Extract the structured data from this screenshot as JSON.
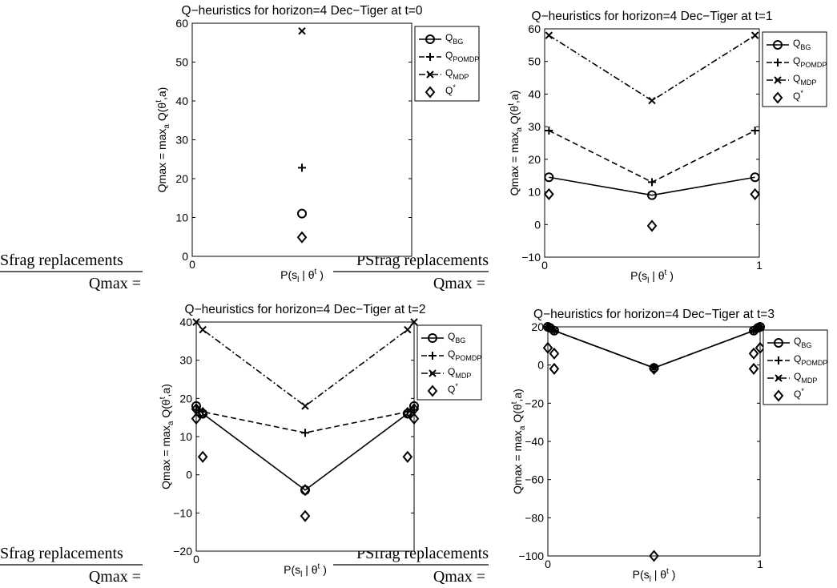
{
  "chart_data": [
    {
      "type": "line",
      "title": "Q−heuristics for horizon=4 Dec−Tiger at t=0",
      "xlabel": "P(s",
      "xlabel_sub": "l",
      "xlabel_rest": " | θ",
      "xlabel_sup": "t",
      "xlabel_end": " )",
      "ylabel": "Qmax = max",
      "ylabel_sub": "a",
      "ylabel_rest": " Q(θ",
      "ylabel_sup": "t",
      "ylabel_end": ",a)",
      "xlim": [
        0,
        1
      ],
      "ylim": [
        0,
        60
      ],
      "xticks": [
        0
      ],
      "yticks": [
        0,
        10,
        20,
        30,
        40,
        50,
        60
      ],
      "legend_position": "top-right",
      "series": [
        {
          "name": "BG",
          "marker": "circle",
          "line": "solid",
          "x": [
            0.5
          ],
          "y": [
            11
          ]
        },
        {
          "name": "POMDP",
          "marker": "plus",
          "line": "dashed",
          "x": [
            0.5
          ],
          "y": [
            22.8
          ]
        },
        {
          "name": "MDP",
          "marker": "x",
          "line": "dashdot",
          "x": [
            0.5
          ],
          "y": [
            58
          ]
        },
        {
          "name": "*",
          "marker": "diamond",
          "line": "none",
          "x": [
            0.5
          ],
          "y": [
            4.9
          ]
        }
      ]
    },
    {
      "type": "line",
      "title": "Q−heuristics for horizon=4 Dec−Tiger at t=1",
      "xlabel": "P(s",
      "xlabel_sub": "l",
      "xlabel_rest": " | θ",
      "xlabel_sup": "t",
      "xlabel_end": " )",
      "ylabel": "Qmax = max",
      "ylabel_sub": "a",
      "ylabel_rest": " Q(θ",
      "ylabel_sup": "t",
      "ylabel_end": ",a)",
      "xlim": [
        0,
        1
      ],
      "ylim": [
        -10,
        60
      ],
      "xticks": [
        0,
        1
      ],
      "yticks": [
        -10,
        0,
        10,
        20,
        30,
        40,
        50,
        60
      ],
      "legend_position": "top-right",
      "series": [
        {
          "name": "BG",
          "marker": "circle",
          "line": "solid",
          "x": [
            0.02,
            0.5,
            0.98
          ],
          "y": [
            14.5,
            9,
            14.5
          ]
        },
        {
          "name": "POMDP",
          "marker": "plus",
          "line": "dashed",
          "x": [
            0.02,
            0.5,
            0.98
          ],
          "y": [
            28.8,
            13,
            28.8
          ]
        },
        {
          "name": "MDP",
          "marker": "x",
          "line": "dashdot",
          "x": [
            0.02,
            0.5,
            0.98
          ],
          "y": [
            58,
            38,
            58
          ]
        },
        {
          "name": "*",
          "marker": "diamond",
          "line": "none",
          "x": [
            0.02,
            0.5,
            0.98
          ],
          "y": [
            9.3,
            -0.4,
            9.3
          ]
        }
      ]
    },
    {
      "type": "line",
      "title": "Q−heuristics for horizon=4 Dec−Tiger at t=2",
      "xlabel": "P(s",
      "xlabel_sub": "l",
      "xlabel_rest": " | θ",
      "xlabel_sup": "t",
      "xlabel_end": " )",
      "ylabel": "Qmax = max",
      "ylabel_sub": "a",
      "ylabel_rest": " Q(θ",
      "ylabel_sup": "t",
      "ylabel_end": ",a)",
      "xlim": [
        0,
        1
      ],
      "ylim": [
        -20,
        40
      ],
      "xticks": [
        0
      ],
      "yticks": [
        -20,
        -10,
        0,
        10,
        20,
        30,
        40
      ],
      "legend_position": "top-right",
      "series": [
        {
          "name": "BG",
          "marker": "circle",
          "line": "solid",
          "x": [
            0.0,
            0.03,
            0.5,
            0.97,
            1.0
          ],
          "y": [
            18,
            16,
            -4,
            16,
            18
          ]
        },
        {
          "name": "POMDP",
          "marker": "plus",
          "line": "dashed",
          "x": [
            0.0,
            0.03,
            0.5,
            0.97,
            1.0
          ],
          "y": [
            17,
            16.5,
            11,
            16.5,
            17
          ]
        },
        {
          "name": "MDP",
          "marker": "x",
          "line": "dashdot",
          "x": [
            0.0,
            0.03,
            0.5,
            0.97,
            1.0
          ],
          "y": [
            40,
            38,
            18,
            38,
            40
          ]
        },
        {
          "name": "*",
          "marker": "diamond",
          "line": "none",
          "x": [
            0.0,
            0.03,
            0.5,
            0.97,
            1.0,
            0.0,
            0.03,
            0.5,
            0.97,
            1.0
          ],
          "y": [
            14.7,
            4.7,
            -4,
            4.7,
            14.7,
            17.2,
            16.2,
            -10.8,
            16.2,
            17.2
          ]
        }
      ]
    },
    {
      "type": "line",
      "title": "Q−heuristics for horizon=4 Dec−Tiger at t=3",
      "xlabel": "P(s",
      "xlabel_sub": "l",
      "xlabel_rest": " | θ",
      "xlabel_sup": "t",
      "xlabel_end": " )",
      "ylabel": "Qmax = max",
      "ylabel_sub": "a",
      "ylabel_rest": " Q(θ",
      "ylabel_sup": "t",
      "ylabel_end": ",a)",
      "xlim": [
        0,
        1
      ],
      "ylim": [
        -100,
        20
      ],
      "xticks": [
        0,
        1
      ],
      "yticks": [
        -100,
        -80,
        -60,
        -40,
        -20,
        0,
        20
      ],
      "legend_position": "top-right",
      "series": [
        {
          "name": "BG",
          "marker": "circle",
          "line": "solid",
          "x": [
            0.0,
            0.01,
            0.03,
            0.5,
            0.97,
            0.99,
            1.0
          ],
          "y": [
            20,
            19.5,
            18,
            -1.5,
            18,
            19.5,
            20
          ]
        },
        {
          "name": "POMDP",
          "marker": "plus",
          "line": "dashed",
          "x": [
            0.0,
            0.01,
            0.03,
            0.5,
            0.97,
            0.99,
            1.0
          ],
          "y": [
            20,
            19.5,
            18,
            -1.5,
            18,
            19.5,
            20
          ]
        },
        {
          "name": "MDP",
          "marker": "x",
          "line": "dashdot",
          "x": [
            0.0,
            0.01,
            0.03,
            0.5,
            0.97,
            0.99,
            1.0
          ],
          "y": [
            20,
            19.5,
            18,
            -1.5,
            18,
            19.5,
            20
          ]
        },
        {
          "name": "*",
          "marker": "diamond",
          "line": "none",
          "x": [
            0.0,
            0.03,
            0.03,
            0.5,
            0.97,
            0.97,
            1.0,
            0.5
          ],
          "y": [
            9,
            6,
            -2,
            -2,
            6,
            -2,
            9,
            -100
          ]
        }
      ]
    }
  ],
  "legend_prefix": "Q",
  "psfrag": {
    "left_1": "Sfrag replacements",
    "right_1": "PSfrag replacements",
    "qmax_1a": "Qmax =",
    "qmax_1b": "Qmax =",
    "left_2": "Sfrag replacements",
    "right_2": "PSfrag replacements",
    "qmax_2a": "Qmax =",
    "qmax_2b": "Qmax ="
  }
}
